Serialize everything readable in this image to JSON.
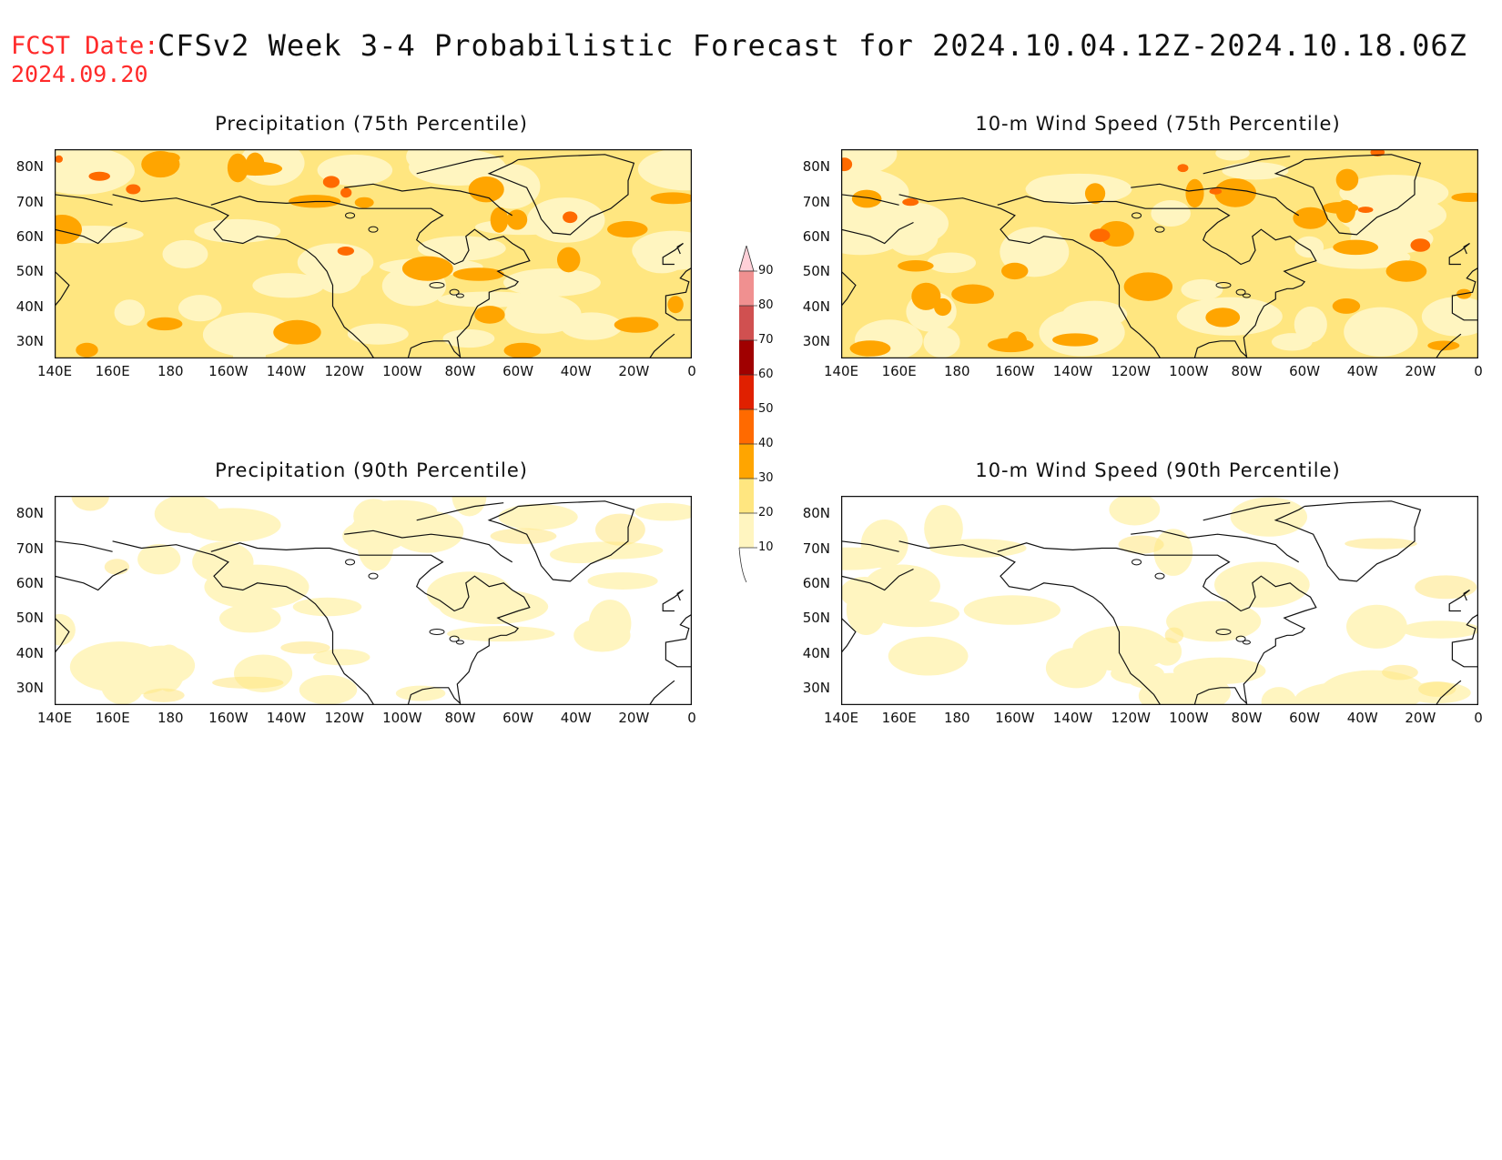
{
  "header": {
    "fcst_label": "FCST Date:",
    "fcst_date": "2024.09.20",
    "title": "CFSv2 Week 3-4 Probabilistic Forecast for 2024.10.04.12Z-2024.10.18.06Z"
  },
  "panels": [
    {
      "id": "precip75",
      "title": "Precipitation (75th Percentile)",
      "intensity": 0.9
    },
    {
      "id": "wind75",
      "title": "10-m Wind Speed (75th Percentile)",
      "intensity": 1.0
    },
    {
      "id": "precip90",
      "title": "Precipitation (90th Percentile)",
      "intensity": 0.25
    },
    {
      "id": "wind90",
      "title": "10-m Wind Speed (90th Percentile)",
      "intensity": 0.15
    }
  ],
  "lat_labels": [
    "80N",
    "70N",
    "60N",
    "50N",
    "40N",
    "30N"
  ],
  "lon_labels": [
    "140E",
    "160E",
    "180",
    "160W",
    "140W",
    "120W",
    "100W",
    "80W",
    "60W",
    "40W",
    "20W",
    "0"
  ],
  "colorbar": {
    "levels": [
      "10",
      "20",
      "30",
      "40",
      "50",
      "60",
      "70",
      "80",
      "90"
    ],
    "colors": [
      "#fff5c0",
      "#ffe680",
      "#ffa500",
      "#ff6a00",
      "#e02000",
      "#a00000",
      "#d05050",
      "#f09090",
      "#ffd0d8"
    ]
  }
}
